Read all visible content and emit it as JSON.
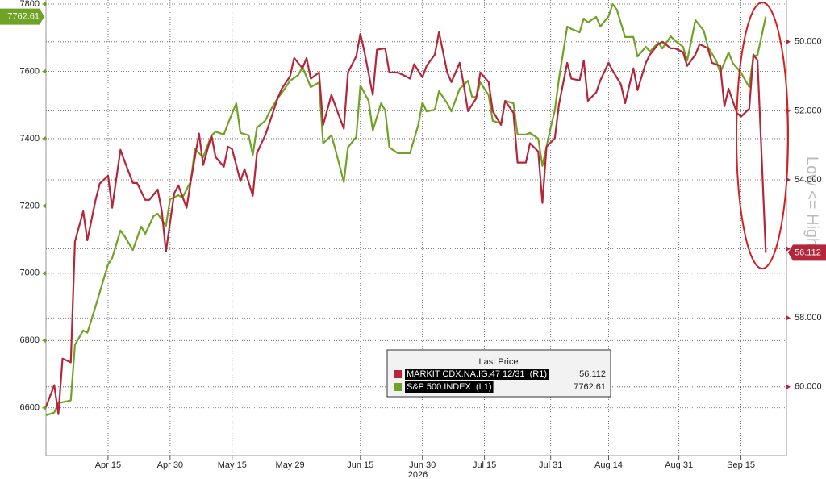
{
  "chart_data": {
    "type": "line",
    "y2label": "Low <= High",
    "xlabel": "2026",
    "legend_title": "Last Price",
    "grid": true,
    "xlim": [
      "2026-03-31",
      "2026-09-26"
    ],
    "xticks": [
      {
        "value": "2026-04-15",
        "label": "Apr 15"
      },
      {
        "value": "2026-04-30",
        "label": "Apr 30"
      },
      {
        "value": "2026-05-15",
        "label": "May 15"
      },
      {
        "value": "2026-05-29",
        "label": "May 29"
      },
      {
        "value": "2026-06-15",
        "label": "Jun 15"
      },
      {
        "value": "2026-06-30",
        "label": "Jun 30"
      },
      {
        "value": "2026-07-15",
        "label": "Jul 15"
      },
      {
        "value": "2026-07-31",
        "label": "Jul 31"
      },
      {
        "value": "2026-08-14",
        "label": "Aug 14"
      },
      {
        "value": "2026-08-31",
        "label": "Aug 31"
      },
      {
        "value": "2026-09-15",
        "label": "Sep 15"
      }
    ],
    "ylim": [
      6458,
      7812
    ],
    "yticks": [
      6600,
      6800,
      7000,
      7200,
      7400,
      7600,
      7800
    ],
    "y2lim": [
      61.99,
      48.79
    ],
    "y2ticks": [
      {
        "value": 50,
        "label": "50.000"
      },
      {
        "value": 52,
        "label": "52.000"
      },
      {
        "value": 54,
        "label": "54.000"
      },
      {
        "value": 56,
        "label": "56.000"
      },
      {
        "value": 58,
        "label": "58.000"
      },
      {
        "value": 60,
        "label": "60.000"
      }
    ],
    "series": [
      {
        "name": "MARKIT CDX.NA.IG.47 12/31  (R1)",
        "color": "#b5263a",
        "axis": "y2",
        "x": [
          "2026-03-31",
          "2026-04-02",
          "2026-04-03",
          "2026-04-04",
          "2026-04-06",
          "2026-04-07",
          "2026-04-09",
          "2026-04-10",
          "2026-04-12",
          "2026-04-13",
          "2026-04-15",
          "2026-04-16",
          "2026-04-18",
          "2026-04-19",
          "2026-04-21",
          "2026-04-22",
          "2026-04-24",
          "2026-04-25",
          "2026-04-27",
          "2026-04-28",
          "2026-04-29",
          "2026-05-01",
          "2026-05-02",
          "2026-05-04",
          "2026-05-05",
          "2026-05-07",
          "2026-05-08",
          "2026-05-10",
          "2026-05-11",
          "2026-05-13",
          "2026-05-14",
          "2026-05-15",
          "2026-05-17",
          "2026-05-18",
          "2026-05-20",
          "2026-05-21",
          "2026-05-23",
          "2026-05-24",
          "2026-05-26",
          "2026-05-27",
          "2026-05-29",
          "2026-05-30",
          "2026-06-01",
          "2026-06-02",
          "2026-06-03",
          "2026-06-05",
          "2026-06-06",
          "2026-06-08",
          "2026-06-09",
          "2026-06-11",
          "2026-06-12",
          "2026-06-14",
          "2026-06-15",
          "2026-06-16",
          "2026-06-18",
          "2026-06-19",
          "2026-06-21",
          "2026-06-22",
          "2026-06-24",
          "2026-06-26",
          "2026-06-27",
          "2026-06-28",
          "2026-06-30",
          "2026-07-01",
          "2026-07-03",
          "2026-07-04",
          "2026-07-06",
          "2026-07-07",
          "2026-07-09",
          "2026-07-10",
          "2026-07-11",
          "2026-07-13",
          "2026-07-14",
          "2026-07-16",
          "2026-07-17",
          "2026-07-19",
          "2026-07-20",
          "2026-07-22",
          "2026-07-23",
          "2026-07-25",
          "2026-07-26",
          "2026-07-28",
          "2026-07-29",
          "2026-07-30",
          "2026-08-01",
          "2026-08-02",
          "2026-08-04",
          "2026-08-05",
          "2026-08-07",
          "2026-08-08",
          "2026-08-09",
          "2026-08-11",
          "2026-08-12",
          "2026-08-14",
          "2026-08-15",
          "2026-08-17",
          "2026-08-18",
          "2026-08-20",
          "2026-08-21",
          "2026-08-23",
          "2026-08-24",
          "2026-08-26",
          "2026-08-27",
          "2026-08-29",
          "2026-08-30",
          "2026-09-01",
          "2026-09-02",
          "2026-09-04",
          "2026-09-05",
          "2026-09-07",
          "2026-09-08",
          "2026-09-10",
          "2026-09-11",
          "2026-09-12",
          "2026-09-14",
          "2026-09-15",
          "2026-09-17",
          "2026-09-18",
          "2026-09-19",
          "2026-09-21"
        ],
        "values": [
          60.58,
          59.95,
          60.79,
          59.18,
          59.29,
          55.79,
          54.91,
          55.75,
          54.58,
          54.11,
          53.88,
          54.81,
          53.13,
          53.46,
          54.09,
          54.09,
          54.58,
          54.58,
          54.28,
          54.91,
          56.08,
          54.39,
          54.16,
          54.81,
          54.04,
          52.66,
          53.57,
          52.71,
          53.34,
          53.62,
          53.04,
          53.11,
          54.04,
          53.69,
          54.46,
          53.22,
          52.71,
          52.36,
          51.64,
          51.36,
          51.0,
          50.47,
          50.77,
          50.47,
          51.07,
          50.89,
          52.41,
          51.54,
          51.87,
          52.52,
          50.89,
          50.42,
          49.77,
          50.3,
          51.54,
          50.23,
          50.19,
          50.89,
          50.89,
          51.0,
          51.07,
          50.65,
          51.03,
          50.7,
          50.37,
          49.72,
          50.89,
          51.17,
          50.61,
          51.26,
          52.01,
          51.64,
          50.89,
          51.17,
          52.01,
          52.41,
          51.71,
          52.06,
          53.5,
          53.5,
          52.94,
          53.18,
          54.67,
          53.04,
          52.8,
          51.82,
          50.61,
          51.07,
          51.12,
          50.54,
          51.71,
          51.47,
          51.12,
          50.61,
          50.84,
          51.24,
          51.78,
          50.77,
          51.4,
          50.61,
          50.37,
          50.07,
          50.0,
          50.19,
          50.19,
          50.3,
          50.7,
          50.37,
          50.07,
          50.19,
          50.61,
          50.7,
          51.87,
          51.36,
          52.06,
          52.17,
          51.94,
          50.37,
          50.54,
          56.112
        ]
      },
      {
        "name": "S&P 500 INDEX  (L1)",
        "color": "#6fa325",
        "axis": "y",
        "x": [
          "2026-03-31",
          "2026-04-02",
          "2026-04-03",
          "2026-04-06",
          "2026-04-07",
          "2026-04-09",
          "2026-04-10",
          "2026-04-12",
          "2026-04-15",
          "2026-04-16",
          "2026-04-18",
          "2026-04-19",
          "2026-04-21",
          "2026-04-23",
          "2026-04-24",
          "2026-04-26",
          "2026-04-27",
          "2026-04-29",
          "2026-04-30",
          "2026-05-02",
          "2026-05-03",
          "2026-05-05",
          "2026-05-06",
          "2026-05-08",
          "2026-05-10",
          "2026-05-11",
          "2026-05-13",
          "2026-05-14",
          "2026-05-16",
          "2026-05-17",
          "2026-05-19",
          "2026-05-20",
          "2026-05-21",
          "2026-05-23",
          "2026-05-24",
          "2026-05-26",
          "2026-05-27",
          "2026-05-29",
          "2026-05-31",
          "2026-06-01",
          "2026-06-03",
          "2026-06-05",
          "2026-06-06",
          "2026-06-08",
          "2026-06-09",
          "2026-06-11",
          "2026-06-12",
          "2026-06-14",
          "2026-06-15",
          "2026-06-17",
          "2026-06-18",
          "2026-06-20",
          "2026-06-21",
          "2026-06-22",
          "2026-06-24",
          "2026-06-26",
          "2026-06-27",
          "2026-06-29",
          "2026-06-30",
          "2026-07-01",
          "2026-07-03",
          "2026-07-04",
          "2026-07-06",
          "2026-07-07",
          "2026-07-09",
          "2026-07-11",
          "2026-07-12",
          "2026-07-13",
          "2026-07-14",
          "2026-07-16",
          "2026-07-17",
          "2026-07-19",
          "2026-07-20",
          "2026-07-22",
          "2026-07-23",
          "2026-07-25",
          "2026-07-26",
          "2026-07-28",
          "2026-07-29",
          "2026-07-31",
          "2026-08-01",
          "2026-08-02",
          "2026-08-04",
          "2026-08-05",
          "2026-08-07",
          "2026-08-08",
          "2026-08-09",
          "2026-08-11",
          "2026-08-12",
          "2026-08-14",
          "2026-08-15",
          "2026-08-16",
          "2026-08-18",
          "2026-08-20",
          "2026-08-21",
          "2026-08-23",
          "2026-08-24",
          "2026-08-26",
          "2026-08-27",
          "2026-08-29",
          "2026-08-30",
          "2026-09-01",
          "2026-09-02",
          "2026-09-04",
          "2026-09-06",
          "2026-09-07",
          "2026-09-09",
          "2026-09-10",
          "2026-09-12",
          "2026-09-13",
          "2026-09-15",
          "2026-09-17",
          "2026-09-18",
          "2026-09-19",
          "2026-09-21"
        ],
        "values": [
          6578,
          6586,
          6614,
          6622,
          6787,
          6830,
          6823,
          6902,
          7026,
          7045,
          7127,
          7110,
          7069,
          7139,
          7117,
          7170,
          7177,
          7141,
          7220,
          7232,
          7225,
          7273,
          7369,
          7345,
          7409,
          7421,
          7412,
          7445,
          7505,
          7417,
          7410,
          7352,
          7433,
          7453,
          7479,
          7520,
          7536,
          7572,
          7589,
          7613,
          7553,
          7567,
          7386,
          7410,
          7366,
          7271,
          7374,
          7405,
          7558,
          7512,
          7424,
          7505,
          7484,
          7374,
          7357,
          7357,
          7357,
          7441,
          7508,
          7481,
          7486,
          7541,
          7505,
          7481,
          7548,
          7572,
          7524,
          7524,
          7567,
          7529,
          7453,
          7445,
          7512,
          7505,
          7412,
          7412,
          7417,
          7400,
          7319,
          7433,
          7484,
          7577,
          7733,
          7726,
          7716,
          7757,
          7745,
          7762,
          7733,
          7764,
          7800,
          7783,
          7702,
          7702,
          7644,
          7673,
          7659,
          7685,
          7668,
          7704,
          7692,
          7673,
          7632,
          7752,
          7721,
          7673,
          7632,
          7596,
          7656,
          7625,
          7596,
          7553,
          7644,
          7649,
          7762.61
        ]
      }
    ]
  }
}
